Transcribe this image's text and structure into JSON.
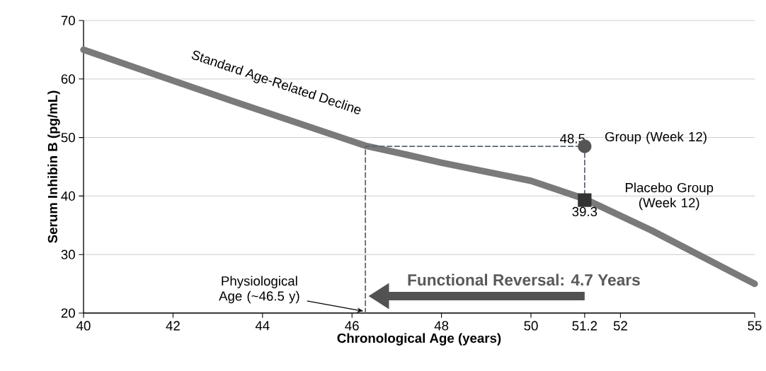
{
  "chart_data": {
    "type": "line",
    "xlabel": "Chronological Age (years)",
    "ylabel": "Serum Inhibin B (pg/mL)",
    "xlim": [
      40,
      55
    ],
    "ylim": [
      20,
      70
    ],
    "xticks": [
      40,
      42,
      44,
      46,
      48,
      50,
      51.2,
      52,
      55
    ],
    "yticks": [
      20,
      30,
      40,
      50,
      60,
      70
    ],
    "grid": "y",
    "series": [
      {
        "color": "#7a7a7a",
        "line_style": "solid",
        "marker": "none",
        "x": [
          40,
          43.3,
          46.3,
          47.2,
          48,
          50,
          51.2,
          52.7,
          55
        ],
        "values": [
          65,
          56.3,
          48.6,
          47.1,
          45.7,
          42.6,
          39.5,
          34.1,
          25
        ]
      },
      {
        "color": "#5a6470",
        "line_style": "dashed",
        "marker": "none",
        "x": [
          46.3,
          46.3,
          51.2,
          51.2
        ],
        "values": [
          20,
          48.5,
          48.5,
          39.3
        ]
      },
      {
        "type": "scatter",
        "name": "Group (Week 12)",
        "color": "#555555",
        "marker": "circle",
        "x": [
          51.2
        ],
        "values": [
          48.5
        ],
        "value_labels": [
          "48.5"
        ]
      },
      {
        "type": "scatter",
        "name": "Placebo Group (Week 12)",
        "color": "#333333",
        "marker": "square",
        "x": [
          51.2
        ],
        "values": [
          39.3
        ],
        "value_labels": [
          "39.3"
        ]
      }
    ],
    "annotations": [
      "Standard Age-Related Decline",
      "Physiological Age (~46.5 y)",
      "Functional Reversal: 4.7 Years"
    ]
  }
}
